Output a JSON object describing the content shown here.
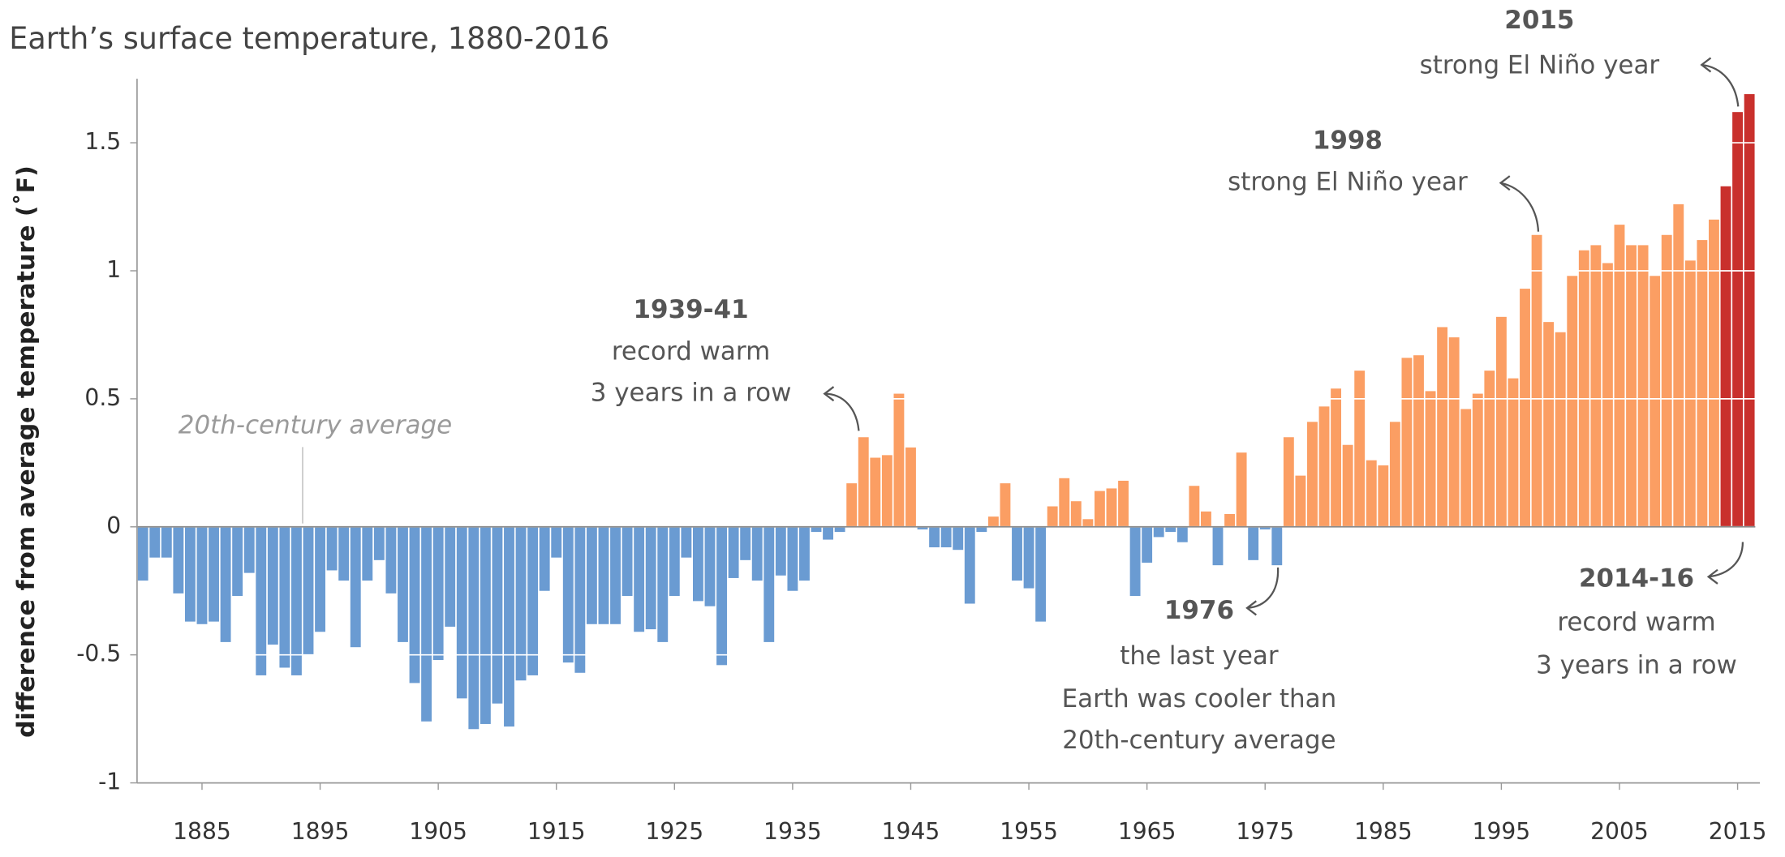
{
  "chart_data": {
    "type": "bar",
    "title": "Earth’s surface temperature, 1880-2016",
    "y_label": "difference from average temperature (˚F)",
    "x": [
      1880,
      1881,
      1882,
      1883,
      1884,
      1885,
      1886,
      1887,
      1888,
      1889,
      1890,
      1891,
      1892,
      1893,
      1894,
      1895,
      1896,
      1897,
      1898,
      1899,
      1900,
      1901,
      1902,
      1903,
      1904,
      1905,
      1906,
      1907,
      1908,
      1909,
      1910,
      1911,
      1912,
      1913,
      1914,
      1915,
      1916,
      1917,
      1918,
      1919,
      1920,
      1921,
      1922,
      1923,
      1924,
      1925,
      1926,
      1927,
      1928,
      1929,
      1930,
      1931,
      1932,
      1933,
      1934,
      1935,
      1936,
      1937,
      1938,
      1939,
      1940,
      1941,
      1942,
      1943,
      1944,
      1945,
      1946,
      1947,
      1948,
      1949,
      1950,
      1951,
      1952,
      1953,
      1954,
      1955,
      1956,
      1957,
      1958,
      1959,
      1960,
      1961,
      1962,
      1963,
      1964,
      1965,
      1966,
      1967,
      1968,
      1969,
      1970,
      1971,
      1972,
      1973,
      1974,
      1975,
      1976,
      1977,
      1978,
      1979,
      1980,
      1981,
      1982,
      1983,
      1984,
      1985,
      1986,
      1987,
      1988,
      1989,
      1990,
      1991,
      1992,
      1993,
      1994,
      1995,
      1996,
      1997,
      1998,
      1999,
      2000,
      2001,
      2002,
      2003,
      2004,
      2005,
      2006,
      2007,
      2008,
      2009,
      2010,
      2011,
      2012,
      2013,
      2014,
      2015,
      2016
    ],
    "values": [
      -0.21,
      -0.12,
      -0.12,
      -0.26,
      -0.37,
      -0.38,
      -0.37,
      -0.45,
      -0.27,
      -0.18,
      -0.58,
      -0.46,
      -0.55,
      -0.58,
      -0.5,
      -0.41,
      -0.17,
      -0.21,
      -0.47,
      -0.21,
      -0.13,
      -0.26,
      -0.45,
      -0.61,
      -0.76,
      -0.52,
      -0.39,
      -0.67,
      -0.79,
      -0.77,
      -0.69,
      -0.78,
      -0.6,
      -0.58,
      -0.25,
      -0.12,
      -0.53,
      -0.57,
      -0.38,
      -0.38,
      -0.38,
      -0.27,
      -0.41,
      -0.4,
      -0.45,
      -0.27,
      -0.12,
      -0.29,
      -0.31,
      -0.54,
      -0.2,
      -0.13,
      -0.21,
      -0.45,
      -0.19,
      -0.25,
      -0.21,
      -0.02,
      -0.05,
      -0.02,
      0.17,
      0.35,
      0.27,
      0.28,
      0.52,
      0.31,
      -0.01,
      -0.08,
      -0.08,
      -0.09,
      -0.3,
      -0.02,
      0.04,
      0.17,
      -0.21,
      -0.24,
      -0.37,
      0.08,
      0.19,
      0.1,
      0.03,
      0.14,
      0.15,
      0.18,
      -0.27,
      -0.14,
      -0.04,
      -0.02,
      -0.06,
      0.16,
      0.06,
      -0.15,
      0.05,
      0.29,
      -0.13,
      -0.01,
      -0.15,
      0.35,
      0.2,
      0.41,
      0.47,
      0.54,
      0.32,
      0.61,
      0.26,
      0.24,
      0.41,
      0.66,
      0.67,
      0.53,
      0.78,
      0.74,
      0.46,
      0.52,
      0.61,
      0.82,
      0.58,
      0.93,
      1.14,
      0.8,
      0.76,
      0.98,
      1.08,
      1.1,
      1.03,
      1.18,
      1.1,
      1.1,
      0.98,
      1.14,
      1.26,
      1.04,
      1.12,
      1.2,
      1.33,
      1.62,
      1.69
    ],
    "colors": {
      "below": "#6a9bd2",
      "above": "#fb9e63",
      "highlight": "#c9302c"
    },
    "highlight_range": [
      2014,
      2016
    ],
    "xlim": [
      1879.5,
      2016.5
    ],
    "xticks": [
      1885,
      1895,
      1905,
      1915,
      1925,
      1935,
      1945,
      1955,
      1965,
      1975,
      1985,
      1995,
      2005,
      2015
    ],
    "ylim": [
      -1,
      1.75
    ],
    "yticks": [
      -1,
      -0.5,
      0,
      0.5,
      1,
      1.5
    ],
    "grid": true,
    "average_label": "20th-century average",
    "annotations": [
      {
        "title": "1939-41",
        "lines": [
          "record warm",
          "3 years in a row"
        ]
      },
      {
        "title": "1976",
        "lines": [
          "the last year",
          "Earth was cooler than",
          "20th-century average"
        ]
      },
      {
        "title": "1998",
        "lines": [
          "strong El Niño year"
        ]
      },
      {
        "title": "2015",
        "lines": [
          "strong El Niño year"
        ]
      },
      {
        "title": "2014-16",
        "lines": [
          "record warm",
          "3 years in a row"
        ]
      }
    ]
  }
}
